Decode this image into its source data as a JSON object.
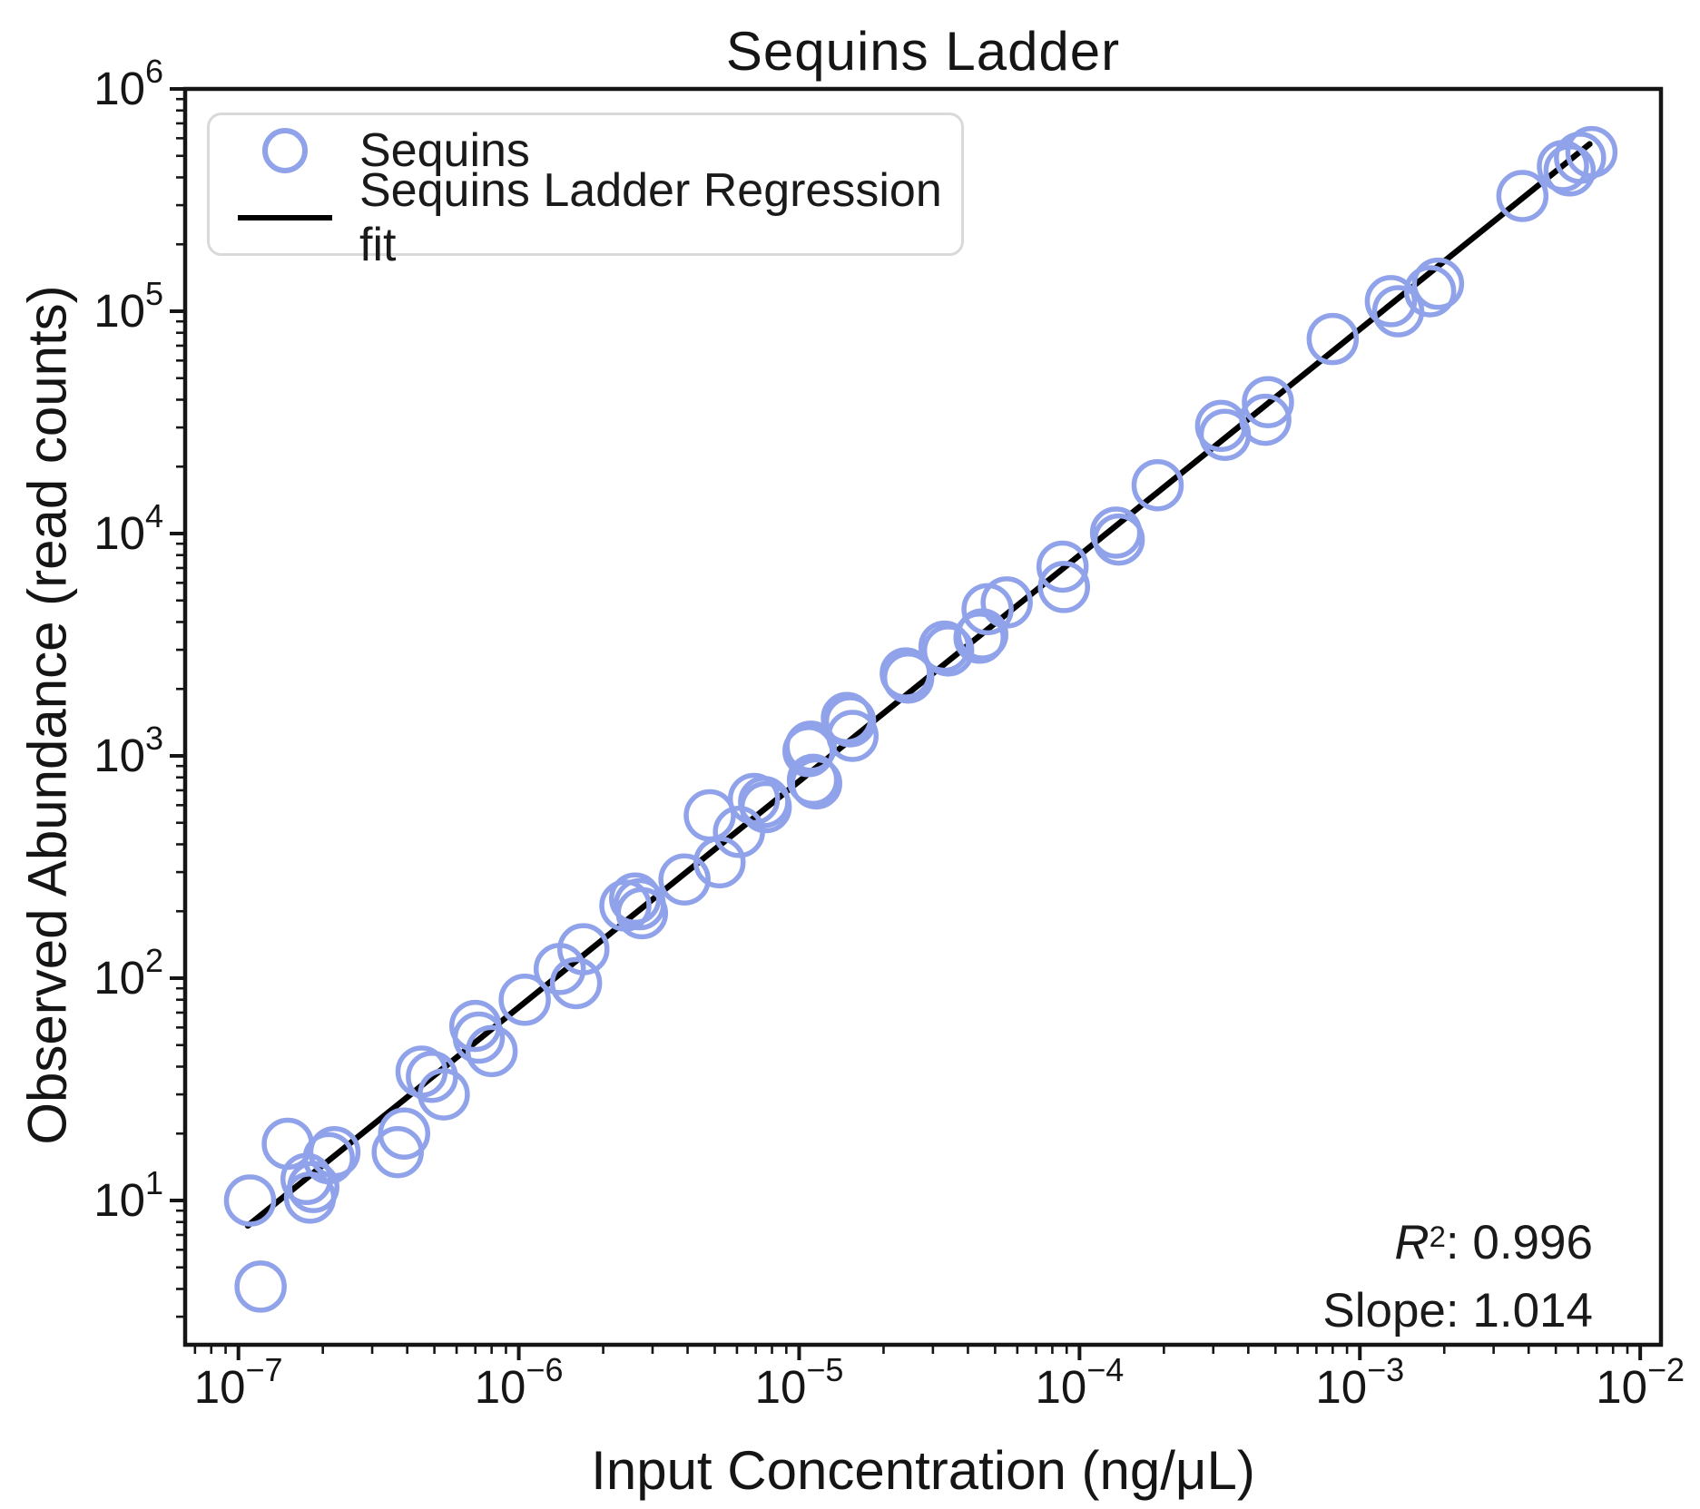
{
  "figure": {
    "title": "Sequins Ladder"
  },
  "axes": {
    "xlabel": "Input Concentration (ng/μL)",
    "ylabel": "Observed Abundance (read counts)"
  },
  "legend": {
    "items": [
      {
        "label": "Sequins",
        "marker": "circle"
      },
      {
        "label": "Sequins Ladder Regression fit",
        "marker": "line"
      }
    ]
  },
  "annotation": {
    "r_symbol": "R",
    "r_exponent": "2",
    "r_value_text": ": 0.996",
    "slope_text": "Slope: 1.014"
  },
  "chart_data": {
    "type": "scatter",
    "title": "Sequins Ladder",
    "xlabel": "Input Concentration (ng/μL)",
    "ylabel": "Observed Abundance (read counts)",
    "x_scale": "log",
    "y_scale": "log",
    "x_log_range": [
      -7.19,
      -1.926
    ],
    "y_log_range": [
      0.351,
      6.0
    ],
    "x_tick_exponents": [
      -7,
      -6,
      -5,
      -4,
      -3,
      -2
    ],
    "y_tick_exponents": [
      1,
      2,
      3,
      4,
      5,
      6
    ],
    "tick_base": "10",
    "grid": false,
    "legend_position": "upper left",
    "marker_color": "#8fa2ea",
    "line_color": "#000000",
    "r_squared": 0.996,
    "slope": 1.014,
    "series": [
      {
        "name": "Sequins",
        "points": [
          [
            1.1e-07,
            10
          ],
          [
            1.2e-07,
            4.1
          ],
          [
            1.5e-07,
            18
          ],
          [
            1.75e-07,
            12.5
          ],
          [
            1.8e-07,
            10.3
          ],
          [
            1.85e-07,
            11.5
          ],
          [
            2.1e-07,
            15.5
          ],
          [
            2.2e-07,
            16.5
          ],
          [
            3.7e-07,
            16.5
          ],
          [
            3.9e-07,
            20
          ],
          [
            4.5e-07,
            38
          ],
          [
            4.9e-07,
            36
          ],
          [
            5.4e-07,
            30
          ],
          [
            7e-07,
            61
          ],
          [
            7.2e-07,
            54
          ],
          [
            8e-07,
            47
          ],
          [
            1.05e-06,
            80
          ],
          [
            1.4e-06,
            110
          ],
          [
            1.6e-06,
            95
          ],
          [
            1.7e-06,
            135
          ],
          [
            2.4e-06,
            212
          ],
          [
            2.6e-06,
            228
          ],
          [
            2.7e-06,
            215
          ],
          [
            2.75e-06,
            196
          ],
          [
            3.9e-06,
            278
          ],
          [
            4.8e-06,
            540
          ],
          [
            5.2e-06,
            332
          ],
          [
            6.1e-06,
            455
          ],
          [
            6.9e-06,
            640
          ],
          [
            7.5e-06,
            620
          ],
          [
            7.6e-06,
            588
          ],
          [
            1.08e-05,
            1050
          ],
          [
            1.1e-05,
            1100
          ],
          [
            1.12e-05,
            780
          ],
          [
            1.15e-05,
            752
          ],
          [
            1.48e-05,
            1480
          ],
          [
            1.52e-05,
            1430
          ],
          [
            1.55e-05,
            1230
          ],
          [
            2.4e-05,
            2350
          ],
          [
            2.45e-05,
            2250
          ],
          [
            3.3e-05,
            3100
          ],
          [
            3.4e-05,
            2980
          ],
          [
            4.4e-05,
            3400
          ],
          [
            4.5e-05,
            3520
          ],
          [
            4.7e-05,
            4570
          ],
          [
            5.5e-05,
            4900
          ],
          [
            8.7e-05,
            7100
          ],
          [
            8.8e-05,
            5750
          ],
          [
            0.000135,
            10100
          ],
          [
            0.000138,
            9400
          ],
          [
            0.00019,
            16500
          ],
          [
            0.00032,
            30500
          ],
          [
            0.00033,
            27800
          ],
          [
            0.00046,
            32500
          ],
          [
            0.00047,
            39000
          ],
          [
            0.0008,
            75000
          ],
          [
            0.00129,
            111000
          ],
          [
            0.00137,
            100000
          ],
          [
            0.00178,
            123000
          ],
          [
            0.0019,
            133000
          ],
          [
            0.0038,
            330000
          ],
          [
            0.0053,
            450000
          ],
          [
            0.0056,
            430000
          ],
          [
            0.0061,
            490000
          ],
          [
            0.0067,
            520000
          ]
        ]
      }
    ],
    "fit_line": {
      "name": "Sequins Ladder Regression fit",
      "x1": 1.08e-07,
      "y1": 7.7,
      "x2": 0.0066,
      "y2": 565000
    }
  }
}
